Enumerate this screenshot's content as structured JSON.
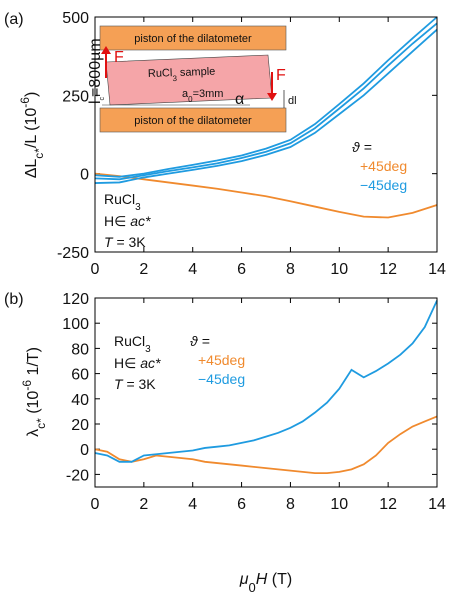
{
  "chart_data": [
    {
      "type": "line",
      "label": "(a)",
      "ylabel": [
        "ΔL",
        "c*",
        "/L (10",
        "-6",
        ")"
      ],
      "x": [
        0,
        1,
        2,
        3,
        4,
        5,
        6,
        7,
        8,
        9,
        10,
        11,
        12,
        13,
        14
      ],
      "series": [
        {
          "name": "+45deg",
          "color": "#f08a2e",
          "values": [
            0,
            -8,
            -18,
            -28,
            -38,
            -48,
            -60,
            -72,
            -88,
            -105,
            -122,
            -137,
            -140,
            -125,
            -100
          ]
        },
        {
          "name": "−45deg",
          "color": "#1f9be0",
          "values": [
            -30,
            -28,
            -12,
            0,
            12,
            25,
            40,
            60,
            85,
            130,
            190,
            250,
            320,
            390,
            460
          ]
        },
        {
          "color": "#1f9be0",
          "values": [
            -15,
            -18,
            -5,
            8,
            20,
            33,
            50,
            70,
            97,
            145,
            208,
            272,
            345,
            415,
            480
          ]
        },
        {
          "color": "#1f9be0",
          "values": [
            -5,
            -10,
            0,
            15,
            28,
            42,
            58,
            80,
            108,
            158,
            222,
            288,
            362,
            432,
            500
          ]
        }
      ],
      "xlim": [
        0,
        14
      ],
      "xticks": [
        0,
        2,
        4,
        6,
        8,
        10,
        12,
        14
      ],
      "ylim": [
        -250,
        500
      ],
      "yticks": [
        -250,
        0,
        250,
        500
      ],
      "legend_title": "ϑ =",
      "sample": [
        "RuCl",
        "3"
      ],
      "field": [
        "H∈ ",
        "ac*"
      ],
      "temperature": [
        "T",
        " = 3K"
      ],
      "inset": {
        "piston_top": "piston of the dilatometer",
        "piston_bottom": "piston of the dilatometer",
        "sample": [
          "RuCl",
          "3",
          " sample"
        ],
        "force": [
          "F",
          "F"
        ],
        "lc": [
          "l",
          "c",
          "=800µm"
        ],
        "a0": [
          "a",
          "0",
          "=3mm"
        ],
        "alpha": "α",
        "dl": "dl"
      }
    },
    {
      "type": "line",
      "label": "(b)",
      "ylabel": [
        "λ",
        "c*",
        " (10",
        "-6",
        " 1/T)"
      ],
      "xlabel": [
        "μ",
        "0",
        "H",
        " (T)"
      ],
      "x": [
        0,
        0.5,
        1,
        1.5,
        2,
        2.5,
        3,
        3.5,
        4,
        4.5,
        5,
        5.5,
        6,
        6.5,
        7,
        7.5,
        8,
        8.5,
        9,
        9.5,
        10,
        10.5,
        11,
        11.5,
        12,
        12.5,
        13,
        13.5,
        14
      ],
      "series": [
        {
          "name": "+45deg",
          "color": "#f08a2e",
          "values": [
            0,
            -2,
            -8,
            -10,
            -8,
            -5,
            -6,
            -7,
            -8,
            -10,
            -11,
            -12,
            -13,
            -14,
            -15,
            -16,
            -17,
            -18,
            -19,
            -19,
            -18,
            -16,
            -12,
            -5,
            5,
            12,
            18,
            22,
            26
          ]
        },
        {
          "name": "−45deg",
          "color": "#1f9be0",
          "values": [
            -3,
            -5,
            -10,
            -10,
            -5,
            -4,
            -3,
            -2,
            -1,
            1,
            2,
            3,
            5,
            7,
            10,
            13,
            17,
            22,
            29,
            37,
            48,
            63,
            57,
            62,
            68,
            75,
            84,
            97,
            118
          ]
        }
      ],
      "xlim": [
        0,
        14
      ],
      "xticks": [
        0,
        2,
        4,
        6,
        8,
        10,
        12,
        14
      ],
      "ylim": [
        -30,
        120
      ],
      "yticks": [
        -20,
        0,
        20,
        40,
        60,
        80,
        100,
        120
      ],
      "legend_title": "ϑ =",
      "sample": [
        "RuCl",
        "3"
      ],
      "field": [
        "H∈ ",
        "ac*"
      ],
      "temperature": [
        "T",
        " = 3K"
      ]
    }
  ]
}
